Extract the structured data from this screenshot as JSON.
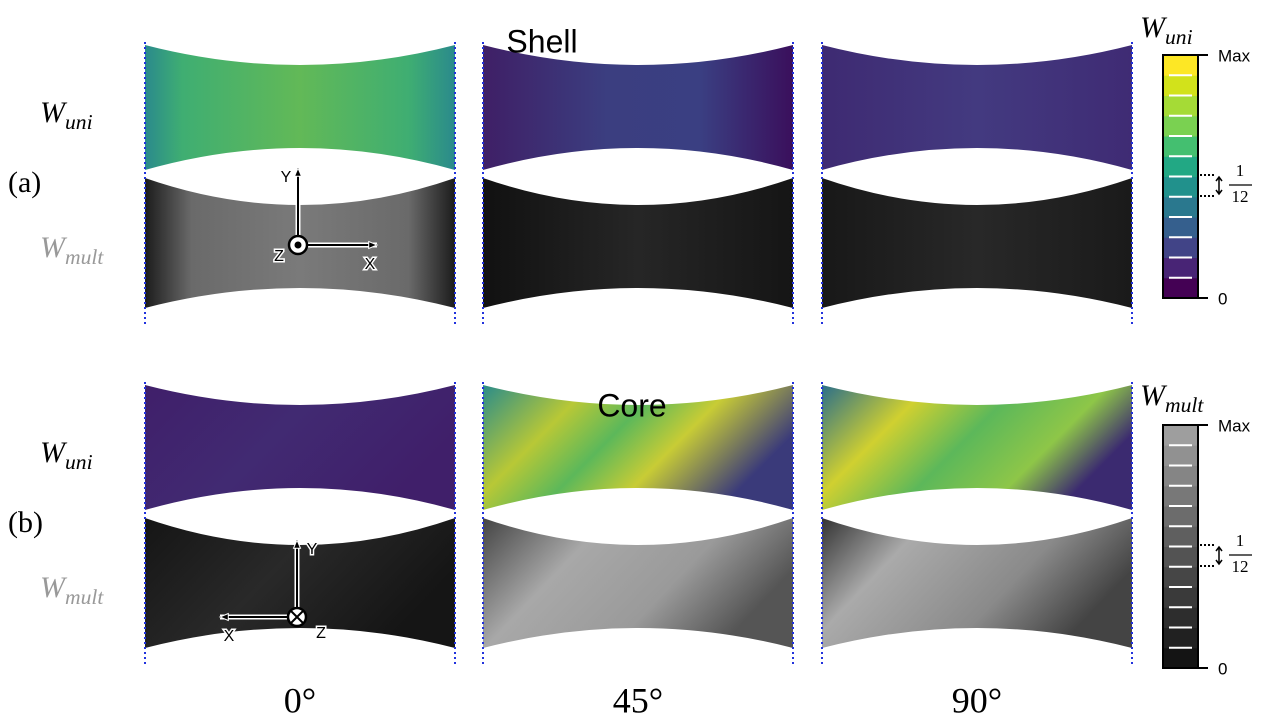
{
  "row_labels": [
    "(a)",
    "(b)"
  ],
  "section_titles": [
    "Shell",
    "Core"
  ],
  "fields": {
    "uni": {
      "symbol": "W",
      "subscript": "uni"
    },
    "mult": {
      "symbol": "W",
      "subscript": "mult"
    }
  },
  "angle_labels": [
    "0°",
    "45°",
    "90°"
  ],
  "axes": {
    "x": "X",
    "y": "Y",
    "z": "Z"
  },
  "colorbar": {
    "max_label": "Max",
    "min_label": 0,
    "step_numerator": 1,
    "step_denominator": 12
  }
}
